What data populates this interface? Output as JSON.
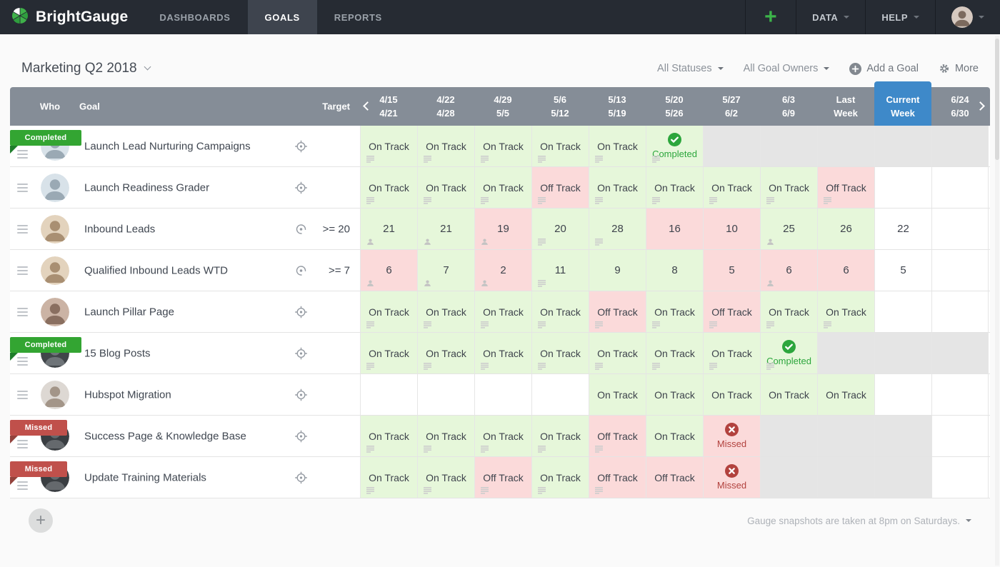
{
  "nav": {
    "brand": "BrightGauge",
    "items": [
      {
        "label": "DASHBOARDS",
        "active": false
      },
      {
        "label": "GOALS",
        "active": true
      },
      {
        "label": "REPORTS",
        "active": false
      }
    ],
    "add_label": "+",
    "data_label": "DATA",
    "help_label": "HELP"
  },
  "header": {
    "title": "Marketing Q2 2018",
    "filters": [
      "All Statuses",
      "All Goal Owners"
    ],
    "add_goal": "Add a Goal",
    "more": "More"
  },
  "table": {
    "col_headers": {
      "who": "Who",
      "goal": "Goal",
      "target": "Target"
    },
    "weeks": [
      {
        "line1": "4/15",
        "line2": "4/21"
      },
      {
        "line1": "4/22",
        "line2": "4/28"
      },
      {
        "line1": "4/29",
        "line2": "5/5"
      },
      {
        "line1": "5/6",
        "line2": "5/12"
      },
      {
        "line1": "5/13",
        "line2": "5/19"
      },
      {
        "line1": "5/20",
        "line2": "5/26"
      },
      {
        "line1": "5/27",
        "line2": "6/2"
      },
      {
        "line1": "6/3",
        "line2": "6/9"
      },
      {
        "line1": "Last",
        "line2": "Week"
      },
      {
        "line1": "Current",
        "line2": "Week",
        "current": true
      },
      {
        "line1": "6/24",
        "line2": "6/30"
      }
    ],
    "rows": [
      {
        "goal": "Launch Lead Nurturing Campaigns",
        "ribbon": {
          "label": "Completed",
          "type": "completed"
        },
        "target": null,
        "target_icon": "crosshair",
        "avatar": {
          "bg": "#d8e2e9",
          "fg": "#9aa9b4"
        },
        "cells": [
          {
            "type": "status",
            "value": "On Track",
            "state": "green",
            "icon": "notes"
          },
          {
            "type": "status",
            "value": "On Track",
            "state": "green",
            "icon": "notes"
          },
          {
            "type": "status",
            "value": "On Track",
            "state": "green",
            "icon": "notes"
          },
          {
            "type": "status",
            "value": "On Track",
            "state": "green",
            "icon": "notes"
          },
          {
            "type": "status",
            "value": "On Track",
            "state": "green",
            "icon": "notes"
          },
          {
            "type": "completed",
            "value": "Completed",
            "icon": "notes"
          },
          {
            "type": "disabled"
          },
          {
            "type": "disabled"
          },
          {
            "type": "disabled"
          },
          {
            "type": "disabled"
          },
          {
            "type": "disabled"
          }
        ]
      },
      {
        "goal": "Launch Readiness Grader",
        "ribbon": null,
        "target": null,
        "target_icon": "crosshair",
        "avatar": {
          "bg": "#d8e2e9",
          "fg": "#9aa9b4"
        },
        "cells": [
          {
            "type": "status",
            "value": "On Track",
            "state": "green",
            "icon": "notes"
          },
          {
            "type": "status",
            "value": "On Track",
            "state": "green",
            "icon": "notes"
          },
          {
            "type": "status",
            "value": "On Track",
            "state": "green",
            "icon": "notes"
          },
          {
            "type": "status",
            "value": "Off Track",
            "state": "red",
            "icon": "notes"
          },
          {
            "type": "status",
            "value": "On Track",
            "state": "green",
            "icon": "notes"
          },
          {
            "type": "status",
            "value": "On Track",
            "state": "green",
            "icon": "notes"
          },
          {
            "type": "status",
            "value": "On Track",
            "state": "green",
            "icon": "notes"
          },
          {
            "type": "status",
            "value": "On Track",
            "state": "green",
            "icon": "notes"
          },
          {
            "type": "status",
            "value": "Off Track",
            "state": "red",
            "icon": "notes"
          },
          {
            "type": "empty"
          },
          {
            "type": "empty"
          }
        ]
      },
      {
        "goal": "Inbound Leads",
        "ribbon": null,
        "target": ">= 20",
        "target_icon": "gauge",
        "avatar": {
          "bg": "#e3d3bd",
          "fg": "#a98f72"
        },
        "cells": [
          {
            "type": "number",
            "value": "21",
            "state": "green",
            "icon": "person"
          },
          {
            "type": "number",
            "value": "21",
            "state": "green",
            "icon": "person"
          },
          {
            "type": "number",
            "value": "19",
            "state": "red",
            "icon": "person"
          },
          {
            "type": "number",
            "value": "20",
            "state": "green",
            "icon": "notes"
          },
          {
            "type": "number",
            "value": "28",
            "state": "green",
            "icon": "notes"
          },
          {
            "type": "number",
            "value": "16",
            "state": "red",
            "icon": null
          },
          {
            "type": "number",
            "value": "10",
            "state": "red",
            "icon": null
          },
          {
            "type": "number",
            "value": "25",
            "state": "green",
            "icon": "person"
          },
          {
            "type": "number",
            "value": "26",
            "state": "green",
            "icon": null
          },
          {
            "type": "number",
            "value": "22",
            "state": "plain",
            "icon": null
          },
          {
            "type": "empty"
          }
        ]
      },
      {
        "goal": "Qualified Inbound Leads WTD",
        "ribbon": null,
        "target": ">= 7",
        "target_icon": "gauge",
        "avatar": {
          "bg": "#e3d3bd",
          "fg": "#a98f72"
        },
        "cells": [
          {
            "type": "number",
            "value": "6",
            "state": "red",
            "icon": "person"
          },
          {
            "type": "number",
            "value": "7",
            "state": "green",
            "icon": "person"
          },
          {
            "type": "number",
            "value": "2",
            "state": "red",
            "icon": "person"
          },
          {
            "type": "number",
            "value": "11",
            "state": "green",
            "icon": "notes"
          },
          {
            "type": "number",
            "value": "9",
            "state": "green",
            "icon": null
          },
          {
            "type": "number",
            "value": "8",
            "state": "green",
            "icon": null
          },
          {
            "type": "number",
            "value": "5",
            "state": "red",
            "icon": null
          },
          {
            "type": "number",
            "value": "6",
            "state": "red",
            "icon": "person"
          },
          {
            "type": "number",
            "value": "6",
            "state": "red",
            "icon": null
          },
          {
            "type": "number",
            "value": "5",
            "state": "plain",
            "icon": null
          },
          {
            "type": "empty"
          }
        ]
      },
      {
        "goal": "Launch Pillar Page",
        "ribbon": null,
        "target": null,
        "target_icon": "crosshair",
        "avatar": {
          "bg": "#cbb3a4",
          "fg": "#8a6f60"
        },
        "cells": [
          {
            "type": "status",
            "value": "On Track",
            "state": "green",
            "icon": "notes"
          },
          {
            "type": "status",
            "value": "On Track",
            "state": "green",
            "icon": "notes"
          },
          {
            "type": "status",
            "value": "On Track",
            "state": "green",
            "icon": "notes"
          },
          {
            "type": "status",
            "value": "On Track",
            "state": "green",
            "icon": "notes"
          },
          {
            "type": "status",
            "value": "Off Track",
            "state": "red",
            "icon": "notes"
          },
          {
            "type": "status",
            "value": "On Track",
            "state": "green",
            "icon": "notes"
          },
          {
            "type": "status",
            "value": "Off Track",
            "state": "red",
            "icon": "notes"
          },
          {
            "type": "status",
            "value": "On Track",
            "state": "green",
            "icon": "notes"
          },
          {
            "type": "status",
            "value": "On Track",
            "state": "green",
            "icon": "notes"
          },
          {
            "type": "empty"
          },
          {
            "type": "empty"
          }
        ]
      },
      {
        "goal": "15 Blog Posts",
        "ribbon": {
          "label": "Completed",
          "type": "completed"
        },
        "target": null,
        "target_icon": "crosshair",
        "avatar": {
          "bg": "#41464a",
          "fg": "#6e7478"
        },
        "cells": [
          {
            "type": "status",
            "value": "On Track",
            "state": "green",
            "icon": "notes"
          },
          {
            "type": "status",
            "value": "On Track",
            "state": "green",
            "icon": "notes"
          },
          {
            "type": "status",
            "value": "On Track",
            "state": "green",
            "icon": "notes"
          },
          {
            "type": "status",
            "value": "On Track",
            "state": "green",
            "icon": "notes"
          },
          {
            "type": "status",
            "value": "On Track",
            "state": "green",
            "icon": "notes"
          },
          {
            "type": "status",
            "value": "On Track",
            "state": "green",
            "icon": "notes"
          },
          {
            "type": "status",
            "value": "On Track",
            "state": "green",
            "icon": "notes"
          },
          {
            "type": "completed",
            "value": "Completed",
            "icon": "notes"
          },
          {
            "type": "disabled"
          },
          {
            "type": "disabled"
          },
          {
            "type": "disabled"
          }
        ]
      },
      {
        "goal": "Hubspot Migration",
        "ribbon": null,
        "target": null,
        "target_icon": "crosshair",
        "avatar": {
          "bg": "#ddd8d3",
          "fg": "#a39588"
        },
        "cells": [
          {
            "type": "empty"
          },
          {
            "type": "empty"
          },
          {
            "type": "empty"
          },
          {
            "type": "empty"
          },
          {
            "type": "status",
            "value": "On Track",
            "state": "green",
            "icon": null
          },
          {
            "type": "status",
            "value": "On Track",
            "state": "green",
            "icon": null
          },
          {
            "type": "status",
            "value": "On Track",
            "state": "green",
            "icon": null
          },
          {
            "type": "status",
            "value": "On Track",
            "state": "green",
            "icon": null
          },
          {
            "type": "status",
            "value": "On Track",
            "state": "green",
            "icon": null
          },
          {
            "type": "empty"
          },
          {
            "type": "empty"
          }
        ]
      },
      {
        "goal": "Success Page & Knowledge Base",
        "ribbon": {
          "label": "Missed",
          "type": "missed"
        },
        "target": null,
        "target_icon": "crosshair",
        "avatar": {
          "bg": "#3a3e42",
          "fg": "#65696d"
        },
        "cells": [
          {
            "type": "status",
            "value": "On Track",
            "state": "green",
            "icon": "notes"
          },
          {
            "type": "status",
            "value": "On Track",
            "state": "green",
            "icon": "notes"
          },
          {
            "type": "status",
            "value": "On Track",
            "state": "green",
            "icon": "notes"
          },
          {
            "type": "status",
            "value": "On Track",
            "state": "green",
            "icon": "notes"
          },
          {
            "type": "status",
            "value": "Off Track",
            "state": "red",
            "icon": "notes"
          },
          {
            "type": "status",
            "value": "On Track",
            "state": "green",
            "icon": null
          },
          {
            "type": "missed",
            "value": "Missed"
          },
          {
            "type": "disabled"
          },
          {
            "type": "disabled"
          },
          {
            "type": "disabled"
          },
          {
            "type": "empty"
          }
        ]
      },
      {
        "goal": "Update Training Materials",
        "ribbon": {
          "label": "Missed",
          "type": "missed"
        },
        "target": null,
        "target_icon": "crosshair",
        "avatar": {
          "bg": "#3a3e42",
          "fg": "#65696d"
        },
        "cells": [
          {
            "type": "status",
            "value": "On Track",
            "state": "green",
            "icon": "notes"
          },
          {
            "type": "status",
            "value": "On Track",
            "state": "green",
            "icon": "notes"
          },
          {
            "type": "status",
            "value": "Off Track",
            "state": "red",
            "icon": "notes"
          },
          {
            "type": "status",
            "value": "On Track",
            "state": "green",
            "icon": "notes"
          },
          {
            "type": "status",
            "value": "Off Track",
            "state": "red",
            "icon": "notes"
          },
          {
            "type": "status",
            "value": "Off Track",
            "state": "red",
            "icon": null
          },
          {
            "type": "missed",
            "value": "Missed"
          },
          {
            "type": "disabled"
          },
          {
            "type": "disabled"
          },
          {
            "type": "disabled"
          },
          {
            "type": "empty"
          }
        ]
      }
    ]
  },
  "footer": {
    "add_row": "+",
    "note": "Gauge snapshots are taken at 8pm on Saturdays."
  },
  "colors": {
    "brand_green": "#3cb44a",
    "nav_bg": "#262b33",
    "header_gray": "#858d97",
    "current_week_blue": "#3e89c9",
    "on_track_bg": "#e6f7da",
    "off_track_bg": "#fbdada",
    "disabled_bg": "#e5e5e5",
    "completed_green": "#2ca63c",
    "missed_red": "#b2423e",
    "ribbon_completed": "#33a532",
    "ribbon_missed": "#c0504b"
  }
}
